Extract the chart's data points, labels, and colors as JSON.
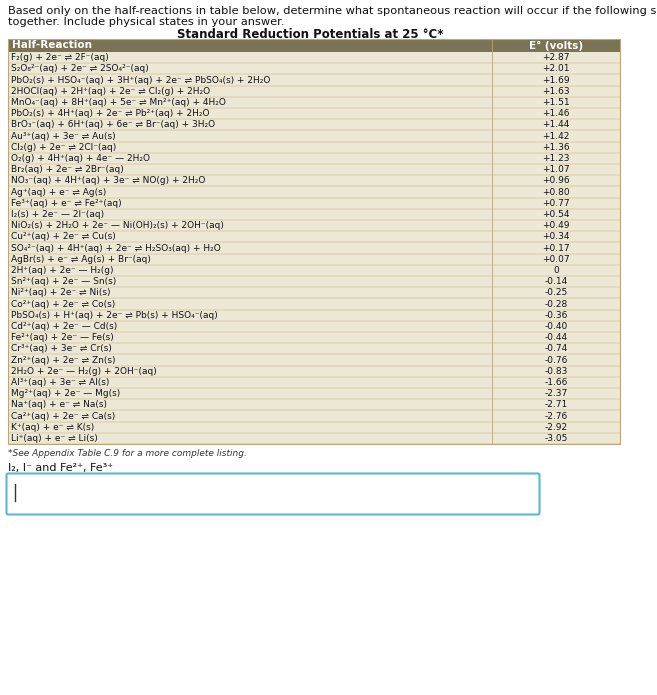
{
  "title_line1": "Based only on the half-reactions in table below, determine what spontaneous reaction will occur if the following substances are mixed",
  "title_line2": "together. Include physical states in your answer.",
  "table_title": "Standard Reduction Potentials at 25 °C*",
  "header": [
    "Half-Reaction",
    "E° (volts)"
  ],
  "header_bg": "#7B7355",
  "header_text_color": "#FFFFFF",
  "row_bg": "#EDE8D5",
  "table_border": "#B8A878",
  "rows": [
    [
      "F₂(g) + 2e⁻ ⇌ 2F⁻(aq)",
      "+2.87"
    ],
    [
      "S₂O₈²⁻(aq) + 2e⁻ ⇌ 2SO₄²⁻(aq)",
      "+2.01"
    ],
    [
      "PbO₂(s) + HSO₄⁻(aq) + 3H⁺(aq) + 2e⁻ ⇌ PbSO₄(s) + 2H₂O",
      "+1.69"
    ],
    [
      "2HOCl(aq) + 2H⁺(aq) + 2e⁻ ⇌ Cl₂(g) + 2H₂O",
      "+1.63"
    ],
    [
      "MnO₄⁻(aq) + 8H⁺(aq) + 5e⁻ ⇌ Mn²⁺(aq) + 4H₂O",
      "+1.51"
    ],
    [
      "PbO₂(s) + 4H⁺(aq) + 2e⁻ ⇌ Pb²⁺(aq) + 2H₂O",
      "+1.46"
    ],
    [
      "BrO₃⁻(aq) + 6H⁺(aq) + 6e⁻ ⇌ Br⁻(aq) + 3H₂O",
      "+1.44"
    ],
    [
      "Au³⁺(aq) + 3e⁻ ⇌ Au(s)",
      "+1.42"
    ],
    [
      "Cl₂(g) + 2e⁻ ⇌ 2Cl⁻(aq)",
      "+1.36"
    ],
    [
      "O₂(g) + 4H⁺(aq) + 4e⁻ — 2H₂O",
      "+1.23"
    ],
    [
      "Br₂(aq) + 2e⁻ ⇌ 2Br⁻(aq)",
      "+1.07"
    ],
    [
      "NO₃⁻(aq) + 4H⁺(aq) + 3e⁻ ⇌ NO(g) + 2H₂O",
      "+0.96"
    ],
    [
      "Ag⁺(aq) + e⁻ ⇌ Ag(s)",
      "+0.80"
    ],
    [
      "Fe³⁺(aq) + e⁻ ⇌ Fe²⁺(aq)",
      "+0.77"
    ],
    [
      "I₂(s) + 2e⁻ — 2I⁻(aq)",
      "+0.54"
    ],
    [
      "NiO₂(s) + 2H₂O + 2e⁻ — Ni(OH)₂(s) + 2OH⁻(aq)",
      "+0.49"
    ],
    [
      "Cu²⁺(aq) + 2e⁻ ⇌ Cu(s)",
      "+0.34"
    ],
    [
      "SO₄²⁻(aq) + 4H⁺(aq) + 2e⁻ ⇌ H₂SO₃(aq) + H₂O",
      "+0.17"
    ],
    [
      "AgBr(s) + e⁻ ⇌ Ag(s) + Br⁻(aq)",
      "+0.07"
    ],
    [
      "2H⁺(aq) + 2e⁻ — H₂(g)",
      "0"
    ],
    [
      "Sn²⁺(aq) + 2e⁻ — Sn(s)",
      "-0.14"
    ],
    [
      "Ni²⁺(aq) + 2e⁻ ⇌ Ni(s)",
      "-0.25"
    ],
    [
      "Co²⁺(aq) + 2e⁻ ⇌ Co(s)",
      "-0.28"
    ],
    [
      "PbSO₄(s) + H⁺(aq) + 2e⁻ ⇌ Pb(s) + HSO₄⁻(aq)",
      "-0.36"
    ],
    [
      "Cd²⁺(aq) + 2e⁻ — Cd(s)",
      "-0.40"
    ],
    [
      "Fe²⁺(aq) + 2e⁻ — Fe(s)",
      "-0.44"
    ],
    [
      "Cr³⁺(aq) + 3e⁻ ⇌ Cr(s)",
      "-0.74"
    ],
    [
      "Zn²⁺(aq) + 2e⁻ ⇌ Zn(s)",
      "-0.76"
    ],
    [
      "2H₂O + 2e⁻ — H₂(g) + 2OH⁻(aq)",
      "-0.83"
    ],
    [
      "Al³⁺(aq) + 3e⁻ ⇌ Al(s)",
      "-1.66"
    ],
    [
      "Mg²⁺(aq) + 2e⁻ — Mg(s)",
      "-2.37"
    ],
    [
      "Na⁺(aq) + e⁻ ⇌ Na(s)",
      "-2.71"
    ],
    [
      "Ca²⁺(aq) + 2e⁻ ⇌ Ca(s)",
      "-2.76"
    ],
    [
      "K⁺(aq) + e⁻ ⇌ K(s)",
      "-2.92"
    ],
    [
      "Li⁺(aq) + e⁻ ⇌ Li(s)",
      "-3.05"
    ]
  ],
  "footnote": "*See Appendix Table C.9 for a more complete listing.",
  "question_label": "I₂, I⁻ and Fe²⁺, Fe³⁺",
  "answer_box_border": "#5BB8D4",
  "bg_color": "#FFFFFF",
  "title_fontsize": 8.2,
  "table_fontsize": 6.5,
  "header_fontsize": 7.5,
  "table_title_fontsize": 8.5
}
